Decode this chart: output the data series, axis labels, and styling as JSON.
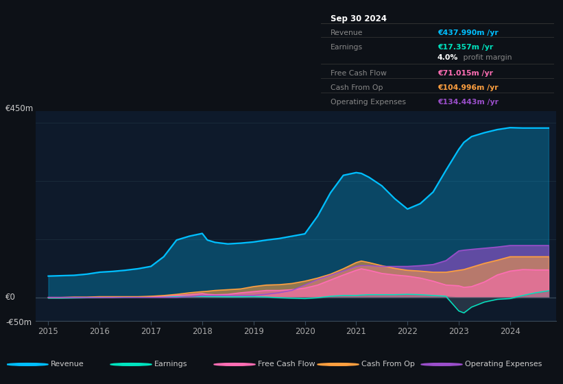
{
  "bg_color": "#0d1117",
  "plot_bg": "#0e1a2b",
  "grid_color": "#1a2a3a",
  "axis_color": "#2a3a4a",
  "text_color": "#aaaaaa",
  "colors": {
    "revenue": "#00bfff",
    "earnings": "#00e5c0",
    "free_cash_flow": "#ff6eb4",
    "cash_from_op": "#ffa040",
    "operating_expenses": "#9b4fcb"
  },
  "x": [
    2015.0,
    2015.25,
    2015.5,
    2015.75,
    2016.0,
    2016.25,
    2016.5,
    2016.75,
    2017.0,
    2017.25,
    2017.5,
    2017.75,
    2018.0,
    2018.1,
    2018.25,
    2018.5,
    2018.75,
    2019.0,
    2019.25,
    2019.5,
    2019.75,
    2020.0,
    2020.25,
    2020.5,
    2020.75,
    2021.0,
    2021.1,
    2021.25,
    2021.5,
    2021.75,
    2022.0,
    2022.25,
    2022.5,
    2022.75,
    2023.0,
    2023.1,
    2023.25,
    2023.5,
    2023.75,
    2024.0,
    2024.25,
    2024.5,
    2024.75
  ],
  "revenue": [
    55,
    56,
    57,
    60,
    65,
    67,
    70,
    74,
    80,
    105,
    148,
    158,
    165,
    148,
    142,
    138,
    140,
    143,
    148,
    152,
    158,
    164,
    210,
    270,
    315,
    322,
    320,
    310,
    288,
    255,
    228,
    242,
    272,
    328,
    382,
    400,
    415,
    425,
    433,
    438,
    437,
    437,
    437
  ],
  "earnings": [
    -2,
    -2,
    -1.5,
    -1,
    -0.5,
    0,
    0.5,
    0.8,
    1,
    1.5,
    2,
    2.2,
    2.5,
    2.2,
    2,
    1.5,
    1.5,
    2,
    1,
    -1,
    -2,
    -3,
    -1,
    3,
    5,
    5,
    6,
    7,
    7,
    7,
    8,
    7,
    5,
    3,
    -35,
    -40,
    -25,
    -12,
    -5,
    -3,
    5,
    12,
    17
  ],
  "free_cash_flow": [
    0,
    0,
    0,
    0,
    0,
    0,
    1,
    1,
    2,
    3,
    5,
    7,
    10,
    8,
    7,
    8,
    12,
    15,
    18,
    18,
    20,
    24,
    32,
    45,
    58,
    70,
    74,
    70,
    62,
    58,
    55,
    50,
    42,
    32,
    30,
    26,
    28,
    40,
    58,
    68,
    72,
    71,
    71
  ],
  "cash_from_op": [
    0,
    0,
    1,
    1,
    2,
    2,
    2,
    2,
    3,
    5,
    8,
    12,
    15,
    16,
    18,
    20,
    22,
    28,
    32,
    33,
    36,
    42,
    50,
    60,
    74,
    90,
    94,
    90,
    82,
    75,
    70,
    68,
    65,
    65,
    70,
    72,
    78,
    88,
    96,
    105,
    105,
    105,
    105
  ],
  "operating_expenses": [
    0,
    0,
    0,
    0,
    0,
    0,
    0,
    0,
    0,
    0,
    0,
    2,
    5,
    5,
    5,
    5,
    5,
    5,
    8,
    12,
    18,
    32,
    46,
    57,
    68,
    80,
    82,
    82,
    80,
    80,
    80,
    82,
    85,
    95,
    120,
    122,
    124,
    127,
    130,
    134,
    134,
    134,
    134
  ],
  "ylim": [
    -60,
    480
  ],
  "xlim_lo": 2014.75,
  "xlim_hi": 2024.9,
  "xticks": [
    2015,
    2016,
    2017,
    2018,
    2019,
    2020,
    2021,
    2022,
    2023,
    2024
  ],
  "ylabel_top": "€450m",
  "ylabel_zero": "€0",
  "ylabel_neg": "-€50m",
  "info_title": "Sep 30 2024",
  "info_rows": [
    {
      "label": "Revenue",
      "value": "€437.990m /yr",
      "vcolor": "#00bfff",
      "sep_after": true
    },
    {
      "label": "Earnings",
      "value": "€17.357m /yr",
      "vcolor": "#00e5c0",
      "sep_after": false
    },
    {
      "label": "",
      "value": "",
      "vcolor": "",
      "sep_after": true,
      "margin": true
    },
    {
      "label": "Free Cash Flow",
      "value": "€71.015m /yr",
      "vcolor": "#ff6eb4",
      "sep_after": true
    },
    {
      "label": "Cash From Op",
      "value": "€104.996m /yr",
      "vcolor": "#ffa040",
      "sep_after": true
    },
    {
      "label": "Operating Expenses",
      "value": "€134.443m /yr",
      "vcolor": "#9b4fcb",
      "sep_after": false
    }
  ],
  "legend_items": [
    {
      "label": "Revenue",
      "color": "#00bfff"
    },
    {
      "label": "Earnings",
      "color": "#00e5c0"
    },
    {
      "label": "Free Cash Flow",
      "color": "#ff6eb4"
    },
    {
      "label": "Cash From Op",
      "color": "#ffa040"
    },
    {
      "label": "Operating Expenses",
      "color": "#9b4fcb"
    }
  ]
}
